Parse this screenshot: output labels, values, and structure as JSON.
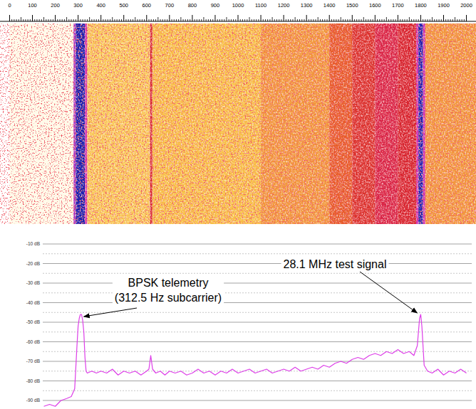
{
  "chart_data": [
    {
      "type": "heatmap",
      "bins": [
        -42,
        0,
        280,
        290,
        330,
        340,
        615,
        625,
        1100,
        1400,
        1500,
        1600,
        1700,
        1780,
        1790,
        1810,
        1820,
        2042
      ],
      "values": [
        -95,
        -90,
        -60,
        -45,
        -62,
        -78,
        -68,
        -77,
        -75,
        -72,
        -69,
        -67,
        -68,
        -62,
        -46,
        -62,
        -75
      ],
      "xlim": [
        -42,
        2042
      ],
      "xticks": [
        0,
        100,
        200,
        300,
        400,
        500,
        600,
        700,
        800,
        900,
        1000,
        1100,
        1200,
        1300,
        1400,
        1500,
        1600,
        1700,
        1800,
        1900,
        2000
      ],
      "tick_labels": "x"
    },
    {
      "type": "line",
      "x": [
        150,
        175,
        200,
        225,
        250,
        270,
        285,
        295,
        300,
        305,
        310,
        315,
        320,
        325,
        330,
        335,
        340,
        360,
        380,
        400,
        425,
        450,
        475,
        500,
        525,
        550,
        575,
        600,
        610,
        618,
        626,
        640,
        660,
        680,
        700,
        725,
        750,
        775,
        800,
        825,
        850,
        875,
        900,
        925,
        950,
        975,
        1000,
        1025,
        1050,
        1075,
        1100,
        1125,
        1150,
        1175,
        1200,
        1225,
        1250,
        1275,
        1300,
        1325,
        1350,
        1375,
        1400,
        1425,
        1450,
        1475,
        1500,
        1525,
        1550,
        1575,
        1600,
        1625,
        1650,
        1675,
        1700,
        1725,
        1750,
        1770,
        1785,
        1795,
        1800,
        1805,
        1815,
        1830,
        1850,
        1875,
        1900,
        1925,
        1950,
        1975,
        2000
      ],
      "values": [
        -93,
        -92,
        -93,
        -90,
        -89,
        -88,
        -84,
        -62,
        -52,
        -48,
        -46,
        -46,
        -49,
        -55,
        -68,
        -75,
        -76,
        -75,
        -76,
        -75,
        -76,
        -74,
        -77,
        -75,
        -76,
        -75,
        -77,
        -75,
        -74,
        -67,
        -74,
        -76,
        -75,
        -77,
        -75,
        -76,
        -75,
        -77,
        -76,
        -74,
        -76,
        -75,
        -77,
        -75,
        -76,
        -74,
        -76,
        -75,
        -74,
        -76,
        -75,
        -74,
        -76,
        -75,
        -74,
        -75,
        -73,
        -75,
        -74,
        -73,
        -74,
        -72,
        -73,
        -71,
        -70,
        -71,
        -69,
        -68,
        -69,
        -67,
        -66,
        -67,
        -65,
        -66,
        -64,
        -66,
        -65,
        -67,
        -62,
        -48,
        -46,
        -52,
        -72,
        -75,
        -76,
        -74,
        -77,
        -75,
        -76,
        -74,
        -76
      ],
      "color": "#dd3ee8",
      "xlim": [
        -42,
        2042
      ],
      "ylim": [
        -94,
        -6
      ],
      "yticks": [
        {
          "value": -10,
          "label": "-10 dB"
        },
        {
          "value": -20,
          "label": "-20 dB"
        },
        {
          "value": -30,
          "label": "-30 dB"
        },
        {
          "value": -40,
          "label": "-40 dB"
        },
        {
          "value": -50,
          "label": "-50 dB"
        },
        {
          "value": -60,
          "label": "-60 dB"
        },
        {
          "value": -70,
          "label": "-70 dB"
        },
        {
          "value": -80,
          "label": "-80 dB"
        },
        {
          "value": -90,
          "label": "-90 dB"
        }
      ],
      "grid": true,
      "tick_labels": "y",
      "annotations": [
        {
          "text": [
            "BPSK telemetry",
            "(312.5 Hz subcarrier)"
          ],
          "x": 312.5,
          "y": -46
        },
        {
          "text": [
            "28.1 MHz test signal"
          ],
          "x": 1800,
          "y": -46
        }
      ]
    }
  ]
}
